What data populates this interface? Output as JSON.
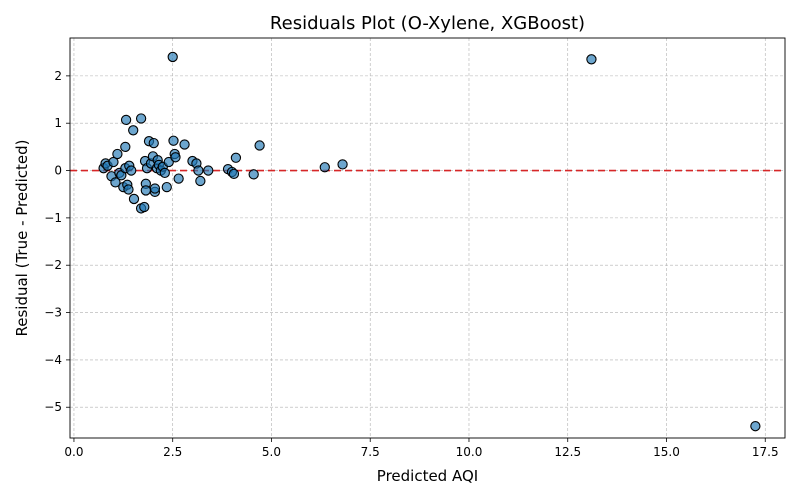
{
  "chart_data": {
    "type": "scatter",
    "title": "Residuals Plot (O-Xylene, XGBoost)",
    "xlabel": "Predicted AQI",
    "ylabel": "Residual (True - Predicted)",
    "xlim": [
      -0.1,
      18.0
    ],
    "ylim": [
      -5.65,
      2.8
    ],
    "xticks": [
      0.0,
      2.5,
      5.0,
      7.5,
      10.0,
      12.5,
      15.0,
      17.5
    ],
    "xtick_labels": [
      "0.0",
      "2.5",
      "5.0",
      "7.5",
      "10.0",
      "12.5",
      "15.0",
      "17.5"
    ],
    "yticks": [
      -5,
      -4,
      -3,
      -2,
      -1,
      0,
      1,
      2
    ],
    "ytick_labels": [
      "−5",
      "−4",
      "−3",
      "−2",
      "−1",
      "0",
      "1",
      "2"
    ],
    "grid": true,
    "reference_line": {
      "y": 0,
      "color": "#d62728",
      "style": "dashed"
    },
    "marker_color": "#1f77b4",
    "marker_edge_color": "#000000",
    "points": [
      {
        "x": 0.75,
        "y": 0.05
      },
      {
        "x": 0.8,
        "y": 0.15
      },
      {
        "x": 0.85,
        "y": 0.1
      },
      {
        "x": 0.95,
        "y": -0.12
      },
      {
        "x": 1.0,
        "y": 0.18
      },
      {
        "x": 1.05,
        "y": -0.25
      },
      {
        "x": 1.1,
        "y": 0.35
      },
      {
        "x": 1.15,
        "y": -0.05
      },
      {
        "x": 1.2,
        "y": -0.1
      },
      {
        "x": 1.25,
        "y": -0.35
      },
      {
        "x": 1.3,
        "y": 0.5
      },
      {
        "x": 1.3,
        "y": 0.05
      },
      {
        "x": 1.32,
        "y": 1.07
      },
      {
        "x": 1.35,
        "y": -0.3
      },
      {
        "x": 1.38,
        "y": -0.4
      },
      {
        "x": 1.4,
        "y": 0.1
      },
      {
        "x": 1.45,
        "y": 0.0
      },
      {
        "x": 1.5,
        "y": 0.85
      },
      {
        "x": 1.52,
        "y": -0.6
      },
      {
        "x": 1.7,
        "y": 1.1
      },
      {
        "x": 1.7,
        "y": -0.8
      },
      {
        "x": 1.78,
        "y": -0.77
      },
      {
        "x": 1.8,
        "y": 0.2
      },
      {
        "x": 1.82,
        "y": -0.28
      },
      {
        "x": 1.82,
        "y": -0.42
      },
      {
        "x": 1.85,
        "y": 0.05
      },
      {
        "x": 1.9,
        "y": 0.62
      },
      {
        "x": 1.95,
        "y": 0.15
      },
      {
        "x": 2.0,
        "y": 0.3
      },
      {
        "x": 2.02,
        "y": 0.58
      },
      {
        "x": 2.05,
        "y": -0.45
      },
      {
        "x": 2.05,
        "y": -0.38
      },
      {
        "x": 2.1,
        "y": 0.05
      },
      {
        "x": 2.12,
        "y": 0.22
      },
      {
        "x": 2.15,
        "y": 0.12
      },
      {
        "x": 2.2,
        "y": 0.0
      },
      {
        "x": 2.25,
        "y": 0.08
      },
      {
        "x": 2.3,
        "y": -0.05
      },
      {
        "x": 2.35,
        "y": -0.35
      },
      {
        "x": 2.4,
        "y": 0.18
      },
      {
        "x": 2.5,
        "y": 2.4
      },
      {
        "x": 2.52,
        "y": 0.63
      },
      {
        "x": 2.55,
        "y": 0.35
      },
      {
        "x": 2.57,
        "y": 0.28
      },
      {
        "x": 2.65,
        "y": -0.17
      },
      {
        "x": 2.8,
        "y": 0.55
      },
      {
        "x": 3.0,
        "y": 0.2
      },
      {
        "x": 3.1,
        "y": 0.15
      },
      {
        "x": 3.15,
        "y": 0.0
      },
      {
        "x": 3.2,
        "y": -0.22
      },
      {
        "x": 3.4,
        "y": 0.0
      },
      {
        "x": 3.9,
        "y": 0.03
      },
      {
        "x": 4.0,
        "y": -0.03
      },
      {
        "x": 4.05,
        "y": -0.07
      },
      {
        "x": 4.1,
        "y": 0.27
      },
      {
        "x": 4.55,
        "y": -0.08
      },
      {
        "x": 4.7,
        "y": 0.53
      },
      {
        "x": 6.35,
        "y": 0.07
      },
      {
        "x": 6.8,
        "y": 0.13
      },
      {
        "x": 13.1,
        "y": 2.35
      },
      {
        "x": 17.25,
        "y": -5.4
      }
    ]
  }
}
